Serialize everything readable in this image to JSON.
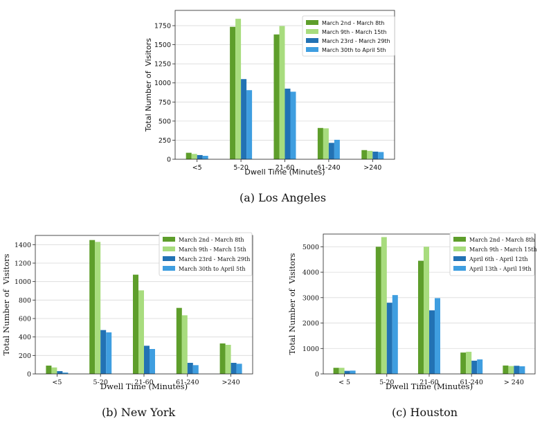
{
  "captions": {
    "a": {
      "tag": "(a)",
      "text": "Los Angeles"
    },
    "b": {
      "tag": "(b)",
      "text": "New York"
    },
    "c": {
      "tag": "(c)",
      "text": "Houston"
    }
  },
  "colors": {
    "dark_green": "#5e9e2b",
    "light_green": "#a8dc7e",
    "dark_blue": "#2272b4",
    "light_blue": "#3f9ee0",
    "grid": "#d9d9d9",
    "axis": "#222222"
  },
  "chart_data": [
    {
      "type": "bar",
      "title": "",
      "xlabel": "Dwell Time (Minutes)",
      "ylabel": "Total Number of  Visitors",
      "categories": [
        "<5",
        "5-20",
        "21-60",
        "61-240",
        ">240"
      ],
      "ylim": [
        0,
        1950
      ],
      "yticks": [
        0,
        250,
        500,
        750,
        1000,
        1250,
        1500,
        1750
      ],
      "grid": true,
      "legend_position": "top-right",
      "series": [
        {
          "name": "March 2nd - March 8th",
          "values": [
            85,
            1735,
            1635,
            410,
            120
          ]
        },
        {
          "name": "March 9th - March 15th",
          "values": [
            70,
            1840,
            1745,
            405,
            110
          ]
        },
        {
          "name": "March 23rd - March 29th",
          "values": [
            55,
            1050,
            925,
            215,
            100
          ]
        },
        {
          "name": "March 30th to April 5th",
          "values": [
            45,
            905,
            885,
            255,
            95
          ]
        }
      ]
    },
    {
      "type": "bar",
      "title": "",
      "xlabel": "Dwell Time (Minutes)",
      "ylabel": "Total Number of  Visitors",
      "categories": [
        "<5",
        "5-20",
        "21-60",
        "61-240",
        ">240"
      ],
      "ylim": [
        0,
        1500
      ],
      "yticks": [
        0,
        200,
        400,
        600,
        800,
        1000,
        1200,
        1400
      ],
      "grid": true,
      "legend_position": "top-right",
      "series": [
        {
          "name": "March 2nd - March 8th",
          "values": [
            90,
            1450,
            1075,
            715,
            330
          ]
        },
        {
          "name": "March 9th - March 15th",
          "values": [
            70,
            1430,
            905,
            635,
            315
          ]
        },
        {
          "name": "March 23rd - March 29th",
          "values": [
            30,
            475,
            305,
            120,
            120
          ]
        },
        {
          "name": "March 30th to April 5th",
          "values": [
            15,
            450,
            270,
            95,
            110
          ]
        }
      ]
    },
    {
      "type": "bar",
      "title": "",
      "xlabel": "Dwell Time (Minutes)",
      "ylabel": "Total Number of  Visitors",
      "categories": [
        "< 5",
        "5-20",
        "21-60",
        "61-240",
        "> 240"
      ],
      "ylim": [
        0,
        5500
      ],
      "yticks": [
        0,
        1000,
        2000,
        3000,
        4000,
        5000
      ],
      "grid": true,
      "legend_position": "top-right",
      "series": [
        {
          "name": "March 2nd - March 8th",
          "values": [
            240,
            5000,
            4450,
            840,
            330
          ]
        },
        {
          "name": "March 9th - March 15th",
          "values": [
            240,
            5380,
            5000,
            870,
            310
          ]
        },
        {
          "name": "April 6th - April 12th",
          "values": [
            120,
            2800,
            2500,
            520,
            320
          ]
        },
        {
          "name": "April 13th - April 19th",
          "values": [
            130,
            3100,
            2980,
            570,
            300
          ]
        }
      ]
    }
  ]
}
